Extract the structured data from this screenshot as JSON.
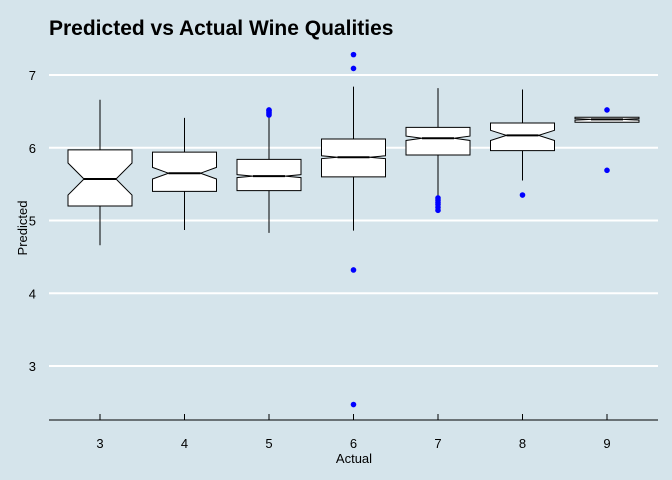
{
  "chart_data": {
    "type": "boxplot",
    "title": "Predicted vs Actual Wine Qualities",
    "xlabel": "Actual",
    "ylabel": "Predicted",
    "categories": [
      "3",
      "4",
      "5",
      "6",
      "7",
      "8",
      "9"
    ],
    "ylim": [
      2.3,
      7.35
    ],
    "yticks": [
      "3",
      "4",
      "5",
      "6",
      "7"
    ],
    "grid": "horizontal",
    "notched": true,
    "colors": {
      "background": "#d5e4eb",
      "grid": "#ffffff",
      "box_fill": "#ffffff",
      "box_stroke": "#000000",
      "outlier": "#0000ff"
    },
    "boxes": [
      {
        "category": "3",
        "min": 4.66,
        "q1": 5.2,
        "median": 5.57,
        "q3": 5.97,
        "max": 6.66,
        "notch_low": 5.35,
        "notch_high": 5.79,
        "outliers": []
      },
      {
        "category": "4",
        "min": 4.87,
        "q1": 5.4,
        "median": 5.65,
        "q3": 5.94,
        "max": 6.41,
        "notch_low": 5.57,
        "notch_high": 5.73,
        "outliers": []
      },
      {
        "category": "5",
        "min": 4.83,
        "q1": 5.41,
        "median": 5.61,
        "q3": 5.84,
        "max": 6.44,
        "notch_low": 5.59,
        "notch_high": 5.63,
        "outliers": [
          6.45,
          6.47,
          6.49,
          6.51,
          6.52
        ]
      },
      {
        "category": "6",
        "min": 4.86,
        "q1": 5.6,
        "median": 5.87,
        "q3": 6.12,
        "max": 6.84,
        "notch_low": 5.85,
        "notch_high": 5.89,
        "outliers": [
          7.28,
          7.09,
          4.32,
          2.47
        ]
      },
      {
        "category": "7",
        "min": 5.33,
        "q1": 5.9,
        "median": 6.13,
        "q3": 6.28,
        "max": 6.82,
        "notch_low": 6.1,
        "notch_high": 6.16,
        "outliers": [
          5.31,
          5.28,
          5.25,
          5.22,
          5.18,
          5.14
        ]
      },
      {
        "category": "8",
        "min": 5.55,
        "q1": 5.96,
        "median": 6.17,
        "q3": 6.34,
        "max": 6.8,
        "notch_low": 6.1,
        "notch_high": 6.24,
        "outliers": [
          5.35
        ]
      },
      {
        "category": "9",
        "min": 6.35,
        "q1": 6.35,
        "median": 6.39,
        "q3": 6.42,
        "max": 6.42,
        "notch_low": 6.38,
        "notch_high": 6.4,
        "outliers": [
          6.52,
          5.69
        ]
      }
    ]
  }
}
